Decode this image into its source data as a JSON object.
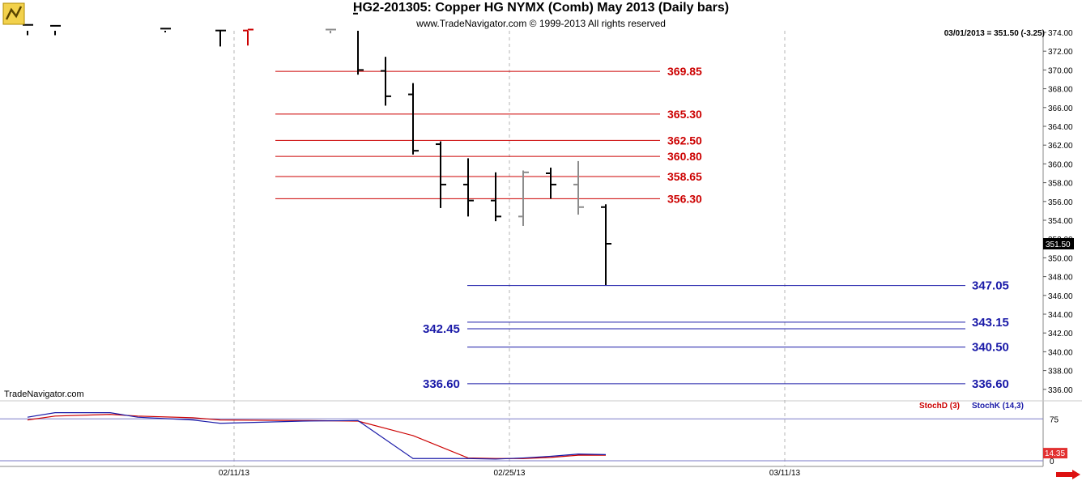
{
  "header": {
    "title": "HG2-201305:  Copper HG NYMX (Comb) May 2013  (Daily bars)",
    "copyright": "www.TradeNavigator.com © 1999-2013 All rights reserved"
  },
  "readout": "03/01/2013 = 351.50 (-3.25)",
  "brand": "TradeNavigator.com",
  "icons": {
    "logo": "trade-navigator-logo-icon",
    "arrow": "red-arrow-right-icon"
  },
  "colors": {
    "up_bar": "#000000",
    "gray_bar": "#8c8c8c",
    "red_level": "#cc0000",
    "blue_level": "#1a1aa8",
    "stoch_d": "#cc0000",
    "stoch_k": "#1a1aa8",
    "price_badge": "#000000",
    "stoch_badge": "#e23030"
  },
  "chart_data": [
    {
      "type": "ohlc",
      "title": "HG2-201305:  Copper HG NYMX (Comb) May 2013  (Daily bars)",
      "ylim": [
        334.5,
        375
      ],
      "y_ticks": [
        "374.00",
        "372.00",
        "370.00",
        "368.00",
        "366.00",
        "364.00",
        "362.00",
        "360.00",
        "358.00",
        "356.00",
        "354.00",
        "352.00",
        "350.00",
        "348.00",
        "346.00",
        "344.00",
        "342.00",
        "340.00",
        "338.00",
        "336.00"
      ],
      "x_ticks": [
        {
          "label": "02/11/13",
          "bar": 7
        },
        {
          "label": "02/25/13",
          "bar": 17
        },
        {
          "label": "03/11/13",
          "bar": 27
        }
      ],
      "last_price": "351.50",
      "bars": [
        {
          "bar": 0,
          "open": 374.8,
          "high": 376,
          "low": 373.7,
          "close": 374.8,
          "color": "black"
        },
        {
          "bar": 1,
          "open": 374.7,
          "high": 376,
          "low": 373.7,
          "close": 374.7,
          "color": "black"
        },
        {
          "bar": 5,
          "open": 374.4,
          "high": 376,
          "low": 374,
          "close": 374.4,
          "color": "black"
        },
        {
          "bar": 7,
          "open": 374.2,
          "high": 376,
          "low": 372.5,
          "close": 374.2,
          "color": "black"
        },
        {
          "bar": 8,
          "open": 374.2,
          "high": 374.3,
          "low": 372.6,
          "close": 374.3,
          "color": "red"
        },
        {
          "bar": 11,
          "open": 374.3,
          "high": 376,
          "low": 373.9,
          "close": 374.3,
          "color": "gray"
        },
        {
          "bar": 12,
          "open": 376,
          "high": 376,
          "low": 369.5,
          "close": 370.0,
          "color": "black"
        },
        {
          "bar": 13,
          "open": 369.9,
          "high": 371.4,
          "low": 366.2,
          "close": 367.2,
          "color": "black"
        },
        {
          "bar": 14,
          "open": 367.4,
          "high": 368.6,
          "low": 361.0,
          "close": 361.4,
          "color": "black"
        },
        {
          "bar": 15,
          "open": 362.1,
          "high": 362.4,
          "low": 355.3,
          "close": 357.8,
          "color": "black"
        },
        {
          "bar": 16,
          "open": 357.8,
          "high": 360.6,
          "low": 354.4,
          "close": 356.1,
          "color": "black"
        },
        {
          "bar": 17,
          "open": 356.1,
          "high": 359.1,
          "low": 353.9,
          "close": 354.4,
          "color": "black"
        },
        {
          "bar": 18,
          "open": 354.4,
          "high": 359.3,
          "low": 353.4,
          "close": 359.1,
          "color": "gray"
        },
        {
          "bar": 19,
          "open": 359.0,
          "high": 359.6,
          "low": 356.3,
          "close": 357.8,
          "color": "black"
        },
        {
          "bar": 20,
          "open": 357.8,
          "high": 360.3,
          "low": 354.6,
          "close": 355.4,
          "color": "gray"
        },
        {
          "bar": 21,
          "open": 355.4,
          "high": 355.7,
          "low": 347.1,
          "close": 351.5,
          "color": "black"
        }
      ],
      "levels": [
        {
          "value": 369.85,
          "label": "369.85",
          "color": "red"
        },
        {
          "value": 365.3,
          "label": "365.30",
          "color": "red"
        },
        {
          "value": 362.5,
          "label": "362.50",
          "color": "red"
        },
        {
          "value": 360.8,
          "label": "360.80",
          "color": "red"
        },
        {
          "value": 358.65,
          "label": "358.65",
          "color": "red"
        },
        {
          "value": 356.3,
          "label": "356.30",
          "color": "red"
        },
        {
          "value": 347.05,
          "label": "347.05",
          "color": "blue"
        },
        {
          "value": 343.15,
          "label": "343.15",
          "color": "blue"
        },
        {
          "value": 342.45,
          "label": "342.45",
          "color": "blue"
        },
        {
          "value": 340.5,
          "label": "340.50",
          "color": "blue"
        },
        {
          "value": 336.6,
          "label": "336.60",
          "color": "blue"
        }
      ]
    },
    {
      "type": "line",
      "ylim": [
        0,
        100
      ],
      "y_ticks": [
        "75",
        "0"
      ],
      "last_value": "14.35",
      "series": [
        {
          "name": "StochD (3)",
          "color": "#cc0000",
          "x": [
            0,
            1,
            3,
            4,
            6,
            7,
            10,
            12,
            14,
            16,
            17,
            18,
            19,
            20,
            21
          ],
          "values": [
            73,
            80,
            83,
            80,
            77,
            73,
            72,
            71,
            45,
            5,
            4,
            4,
            6,
            10,
            10
          ]
        },
        {
          "name": "StochK (14,3)",
          "color": "#1a1aa8",
          "x": [
            0,
            1,
            3,
            4,
            6,
            7,
            10,
            12,
            14,
            16,
            17,
            18,
            19,
            20,
            21
          ],
          "values": [
            78,
            86,
            86,
            78,
            73,
            67,
            71,
            72,
            4,
            4,
            3,
            5,
            8,
            12,
            11
          ]
        }
      ]
    }
  ]
}
